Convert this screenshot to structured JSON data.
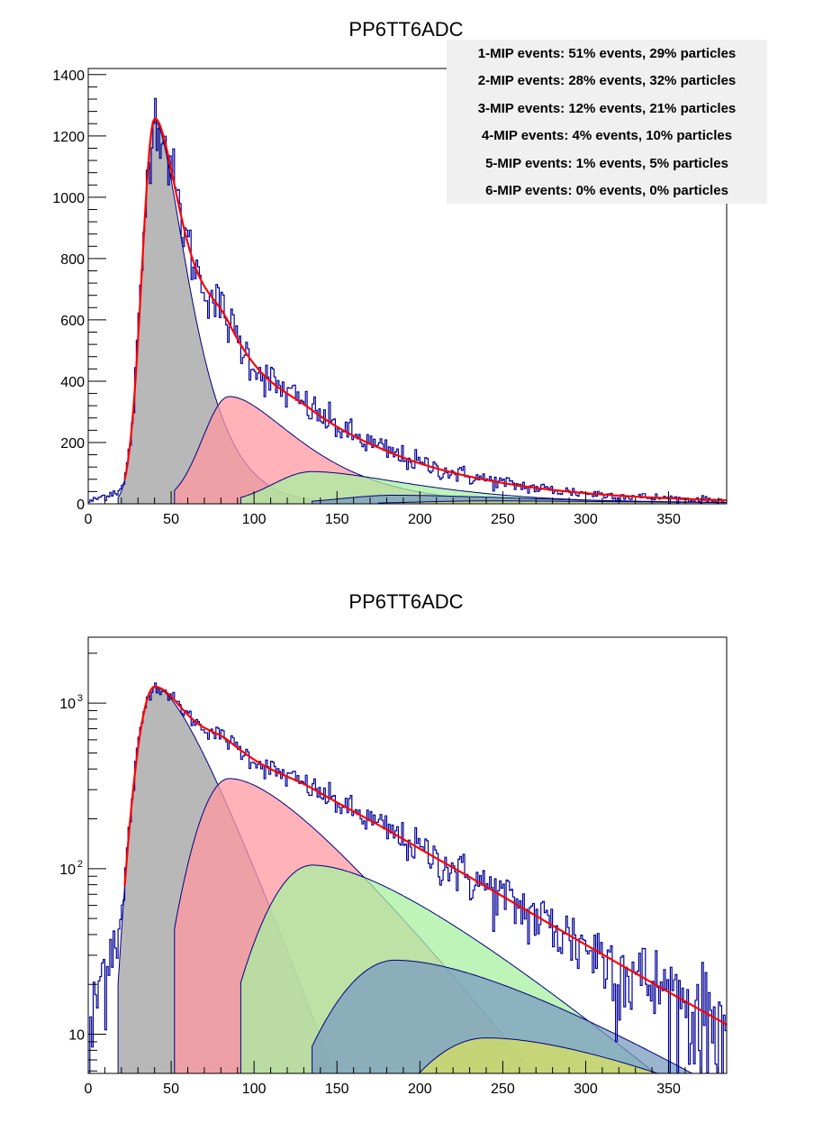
{
  "chart_data": [
    {
      "type": "histogram",
      "title": "PP6TT6ADC",
      "xlim": [
        0,
        385
      ],
      "ylim": [
        0,
        1420
      ],
      "yscale": "linear",
      "x_ticks": [
        "0",
        "50",
        "100",
        "150",
        "200",
        "250",
        "300",
        "350"
      ],
      "y_ticks": [
        "0",
        "200",
        "400",
        "600",
        "800",
        "1000",
        "1200",
        "1400"
      ],
      "stats_box": {
        "placement": "top-right",
        "lines": [
          "1-MIP events: 51% events, 29% particles",
          "2-MIP events: 28% events, 32% particles",
          "3-MIP events: 12% events, 21% particles",
          "4-MIP events: 4% events, 10% particles",
          "5-MIP events: 1% events, 5% particles",
          "6-MIP events: 0% events, 0% particles"
        ]
      },
      "components": [
        {
          "peak_x": 40,
          "peak_y": 1250,
          "color": "#a0a0a0"
        },
        {
          "peak_x": 85,
          "peak_y": 350,
          "color": "#ff9aa2"
        },
        {
          "peak_x": 135,
          "peak_y": 105,
          "color": "#a8f0a0"
        },
        {
          "peak_x": 185,
          "peak_y": 28,
          "color": "#7a9cc0"
        },
        {
          "peak_x": 240,
          "peak_y": 9.5,
          "color": "#d8e060"
        }
      ],
      "fit_color": "#ff0000",
      "histogram_color": "#000099"
    },
    {
      "type": "histogram",
      "title": "PP6TT6ADC",
      "xlim": [
        0,
        385
      ],
      "ylim": [
        5.8,
        2500
      ],
      "yscale": "log",
      "x_ticks": [
        "0",
        "50",
        "100",
        "150",
        "200",
        "250",
        "300",
        "350"
      ],
      "y_ticks": [
        {
          "value": 10,
          "label": "10"
        },
        {
          "value": 100,
          "label": "10",
          "exp": "2"
        },
        {
          "value": 1000,
          "label": "10",
          "exp": "3"
        }
      ],
      "components": [
        {
          "peak_x": 40,
          "peak_y": 1250,
          "color": "#a0a0a0"
        },
        {
          "peak_x": 85,
          "peak_y": 350,
          "color": "#ff9aa2"
        },
        {
          "peak_x": 135,
          "peak_y": 105,
          "color": "#a8f0a0"
        },
        {
          "peak_x": 185,
          "peak_y": 28,
          "color": "#7a9cc0"
        },
        {
          "peak_x": 240,
          "peak_y": 9.5,
          "color": "#d8e060"
        }
      ],
      "fit_color": "#ff0000",
      "histogram_color": "#000099"
    }
  ]
}
